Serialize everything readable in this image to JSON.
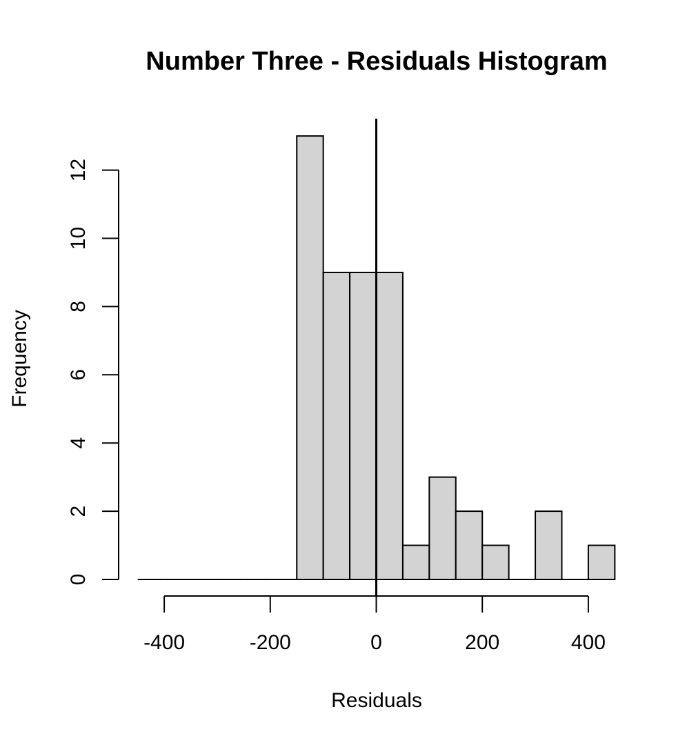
{
  "chart_data": {
    "type": "bar",
    "title": "Number Three - Residuals Histogram",
    "xlabel": "Residuals",
    "ylabel": "Frequency",
    "bins": [
      {
        "from": -450,
        "to": -400,
        "count": 0
      },
      {
        "from": -400,
        "to": -350,
        "count": 0
      },
      {
        "from": -350,
        "to": -300,
        "count": 0
      },
      {
        "from": -300,
        "to": -250,
        "count": 0
      },
      {
        "from": -250,
        "to": -200,
        "count": 0
      },
      {
        "from": -200,
        "to": -150,
        "count": 0
      },
      {
        "from": -150,
        "to": -100,
        "count": 13
      },
      {
        "from": -100,
        "to": -50,
        "count": 9
      },
      {
        "from": -50,
        "to": 0,
        "count": 9
      },
      {
        "from": 0,
        "to": 50,
        "count": 9
      },
      {
        "from": 50,
        "to": 100,
        "count": 1
      },
      {
        "from": 100,
        "to": 150,
        "count": 3
      },
      {
        "from": 150,
        "to": 200,
        "count": 2
      },
      {
        "from": 200,
        "to": 250,
        "count": 1
      },
      {
        "from": 250,
        "to": 300,
        "count": 0
      },
      {
        "from": 300,
        "to": 350,
        "count": 2
      },
      {
        "from": 350,
        "to": 400,
        "count": 0
      },
      {
        "from": 400,
        "to": 450,
        "count": 1
      }
    ],
    "xlim": [
      -450,
      450
    ],
    "ylim": [
      0,
      13
    ],
    "x_ticks": [
      -400,
      -200,
      0,
      200,
      400
    ],
    "y_ticks": [
      0,
      2,
      4,
      6,
      8,
      10,
      12
    ],
    "reference_line_x": 0,
    "bar_fill": "#d3d3d3",
    "bar_stroke": "#000000",
    "grid": false,
    "legend": "none"
  }
}
